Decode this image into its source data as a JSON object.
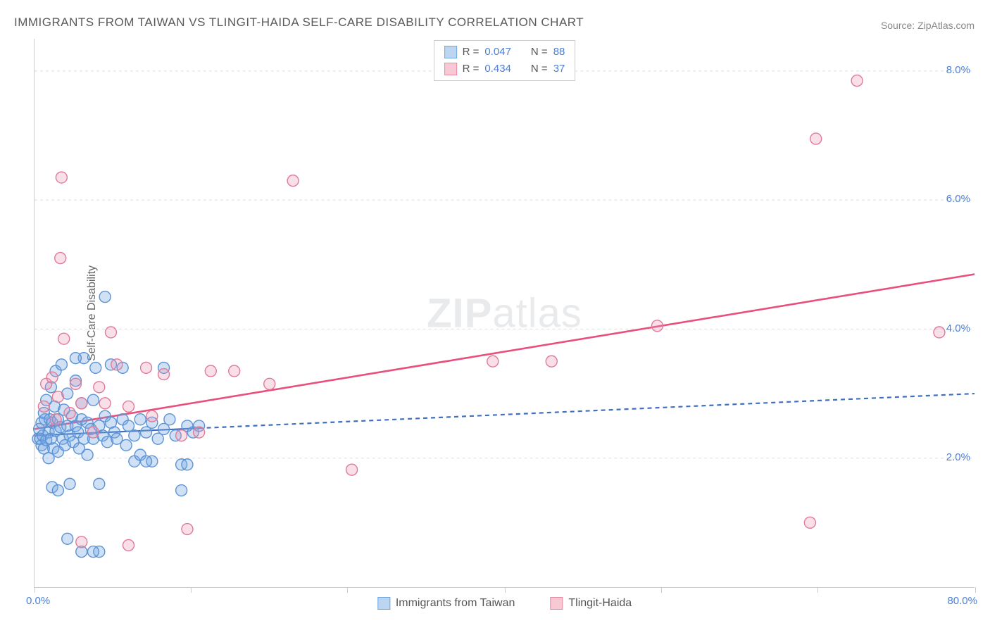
{
  "title": "IMMIGRANTS FROM TAIWAN VS TLINGIT-HAIDA SELF-CARE DISABILITY CORRELATION CHART",
  "source": "Source: ZipAtlas.com",
  "ylabel": "Self-Care Disability",
  "watermark_zip": "ZIP",
  "watermark_atlas": "atlas",
  "legend_top": {
    "series": [
      {
        "r_label": "R = ",
        "r_value": "0.047",
        "n_label": "N = ",
        "n_value": "88",
        "swatch_fill": "#bcd5f0",
        "swatch_border": "#6fa8e0"
      },
      {
        "r_label": "R = ",
        "r_value": "0.434",
        "n_label": "N = ",
        "n_value": "37",
        "swatch_fill": "#f6c9d4",
        "swatch_border": "#e68aa3"
      }
    ]
  },
  "legend_bottom": {
    "items": [
      {
        "label": "Immigrants from Taiwan",
        "swatch_fill": "#bcd5f0",
        "swatch_border": "#6fa8e0"
      },
      {
        "label": "Tlingit-Haida",
        "swatch_fill": "#f6c9d4",
        "swatch_border": "#e68aa3"
      }
    ]
  },
  "axes": {
    "xlim": [
      0,
      80
    ],
    "ylim": [
      0,
      8.5
    ],
    "x_start_label": "0.0%",
    "x_end_label": "80.0%",
    "y_ticks": [
      {
        "value": 2.0,
        "label": "2.0%"
      },
      {
        "value": 4.0,
        "label": "4.0%"
      },
      {
        "value": 6.0,
        "label": "6.0%"
      },
      {
        "value": 8.0,
        "label": "8.0%"
      }
    ],
    "x_tick_positions": [
      0,
      13.3,
      26.6,
      40,
      53.3,
      66.6,
      80
    ],
    "grid_color": "#dddddd",
    "axis_border_color": "#cccccc",
    "value_color": "#4a7fd8",
    "label_color": "#666666",
    "label_fontsize": 16,
    "tick_fontsize": 15
  },
  "chart": {
    "type": "scatter",
    "background_color": "#ffffff",
    "marker_radius": 8,
    "marker_stroke_width": 1.4,
    "series": [
      {
        "name": "Immigrants from Taiwan",
        "fill": "rgba(120,170,225,0.35)",
        "stroke": "#5b93d6",
        "trend": {
          "x1": 0,
          "y1": 2.35,
          "x2": 80,
          "y2": 3.0,
          "solid_until_x": 14,
          "stroke": "#3f6fbf",
          "stroke_width": 2.2,
          "dash": "6 5"
        },
        "points": [
          [
            0.3,
            2.3
          ],
          [
            0.4,
            2.45
          ],
          [
            0.5,
            2.3
          ],
          [
            0.6,
            2.55
          ],
          [
            0.6,
            2.2
          ],
          [
            0.7,
            2.35
          ],
          [
            0.8,
            2.7
          ],
          [
            0.8,
            2.15
          ],
          [
            0.9,
            2.6
          ],
          [
            1.0,
            2.28
          ],
          [
            1.0,
            2.9
          ],
          [
            1.2,
            2.4
          ],
          [
            1.2,
            2.0
          ],
          [
            1.3,
            2.6
          ],
          [
            1.4,
            2.3
          ],
          [
            1.4,
            3.1
          ],
          [
            1.5,
            2.55
          ],
          [
            1.6,
            2.15
          ],
          [
            1.7,
            2.8
          ],
          [
            1.8,
            2.42
          ],
          [
            1.8,
            3.35
          ],
          [
            2.0,
            2.6
          ],
          [
            2.0,
            2.1
          ],
          [
            2.2,
            2.48
          ],
          [
            2.3,
            3.45
          ],
          [
            2.4,
            2.3
          ],
          [
            2.5,
            2.75
          ],
          [
            2.6,
            2.2
          ],
          [
            2.8,
            2.5
          ],
          [
            2.8,
            3.0
          ],
          [
            3.0,
            2.35
          ],
          [
            3.0,
            1.6
          ],
          [
            3.2,
            2.65
          ],
          [
            3.3,
            2.25
          ],
          [
            3.5,
            2.5
          ],
          [
            3.5,
            3.2
          ],
          [
            3.7,
            2.4
          ],
          [
            3.8,
            2.15
          ],
          [
            4.0,
            2.6
          ],
          [
            4.0,
            2.85
          ],
          [
            4.2,
            2.3
          ],
          [
            4.5,
            2.55
          ],
          [
            4.5,
            2.05
          ],
          [
            4.8,
            2.45
          ],
          [
            5.0,
            2.3
          ],
          [
            5.0,
            2.9
          ],
          [
            5.2,
            3.4
          ],
          [
            5.5,
            2.5
          ],
          [
            5.5,
            1.6
          ],
          [
            5.8,
            2.35
          ],
          [
            6.0,
            2.65
          ],
          [
            6.0,
            4.5
          ],
          [
            6.2,
            2.25
          ],
          [
            6.5,
            2.55
          ],
          [
            6.5,
            3.45
          ],
          [
            6.8,
            2.4
          ],
          [
            7.0,
            2.3
          ],
          [
            7.5,
            2.6
          ],
          [
            7.5,
            3.4
          ],
          [
            7.8,
            2.2
          ],
          [
            8.0,
            2.5
          ],
          [
            8.5,
            2.35
          ],
          [
            8.5,
            1.95
          ],
          [
            9.0,
            2.6
          ],
          [
            9.0,
            2.05
          ],
          [
            9.5,
            2.4
          ],
          [
            10.0,
            2.55
          ],
          [
            10.0,
            1.95
          ],
          [
            10.5,
            2.3
          ],
          [
            11.0,
            2.45
          ],
          [
            11.0,
            3.4
          ],
          [
            11.5,
            2.6
          ],
          [
            12.0,
            2.35
          ],
          [
            12.5,
            1.9
          ],
          [
            13.0,
            2.5
          ],
          [
            13.0,
            1.9
          ],
          [
            13.5,
            2.4
          ],
          [
            14.0,
            2.5
          ],
          [
            1.5,
            1.55
          ],
          [
            2.0,
            1.5
          ],
          [
            2.8,
            0.75
          ],
          [
            4.0,
            0.55
          ],
          [
            5.5,
            0.55
          ],
          [
            9.5,
            1.95
          ],
          [
            12.5,
            1.5
          ],
          [
            4.2,
            3.55
          ],
          [
            3.5,
            3.55
          ],
          [
            5.0,
            0.55
          ]
        ]
      },
      {
        "name": "Tlingit-Haida",
        "fill": "rgba(235,150,175,0.30)",
        "stroke": "#e07b9a",
        "trend": {
          "x1": 0,
          "y1": 2.45,
          "x2": 80,
          "y2": 4.85,
          "stroke": "#e84f7d",
          "stroke_width": 2.6
        },
        "points": [
          [
            0.8,
            2.8
          ],
          [
            1.0,
            3.15
          ],
          [
            1.5,
            3.25
          ],
          [
            1.8,
            2.6
          ],
          [
            2.0,
            2.95
          ],
          [
            2.2,
            5.1
          ],
          [
            2.3,
            6.35
          ],
          [
            2.5,
            3.85
          ],
          [
            3.0,
            2.7
          ],
          [
            3.5,
            3.15
          ],
          [
            4.0,
            2.85
          ],
          [
            5.0,
            2.4
          ],
          [
            5.5,
            3.1
          ],
          [
            6.0,
            2.85
          ],
          [
            6.5,
            3.95
          ],
          [
            7.0,
            3.45
          ],
          [
            8.0,
            2.8
          ],
          [
            9.5,
            3.4
          ],
          [
            10.0,
            2.65
          ],
          [
            11.0,
            3.3
          ],
          [
            12.5,
            2.35
          ],
          [
            13.0,
            0.9
          ],
          [
            14.0,
            2.4
          ],
          [
            15.0,
            3.35
          ],
          [
            17.0,
            3.35
          ],
          [
            20.0,
            3.15
          ],
          [
            22.0,
            6.3
          ],
          [
            27.0,
            1.82
          ],
          [
            39.0,
            3.5
          ],
          [
            44.0,
            3.5
          ],
          [
            53.0,
            4.05
          ],
          [
            66.0,
            1.0
          ],
          [
            66.5,
            6.95
          ],
          [
            70.0,
            7.85
          ],
          [
            77.0,
            3.95
          ],
          [
            4.0,
            0.7
          ],
          [
            8.0,
            0.65
          ]
        ]
      }
    ]
  }
}
